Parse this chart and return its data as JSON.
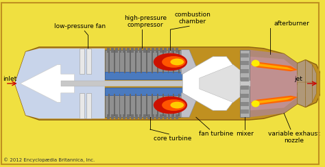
{
  "bg": "#f0e040",
  "border_ec": "#c09020",
  "body_fill": "#c09020",
  "body_ec": "#8B6010",
  "fan_fill": "#c8d4ea",
  "gray_fill": "#909090",
  "gray_ec": "#555555",
  "blue_fill": "#4a7abf",
  "blue_ec": "#2255aa",
  "shaft_fill": "#cccccc",
  "afterburner_fill": "#b08878",
  "mixer_fill": "#aaaaaa",
  "white_cone": "#ffffff",
  "fan_blade_fill": "#e0e0e0",
  "fan_blade_ec": "#999999",
  "nozzle_fin_fill": "#b09878",
  "nozzle_fin_ec": "#8B6010",
  "copyright": "© 2012 Encyclopædia Britannica, Inc.",
  "labels": {
    "low_pressure_fan": "low-pressure fan",
    "high_pressure_compressor": "high-pressure\ncompressor",
    "combustion_chamber": "combustion\nchamber",
    "afterburner": "afterburner",
    "core_turbine": "core turbine",
    "fan_turbine": "fan turbine",
    "mixer": "mixer",
    "variable_exhaust_nozzle": "variable exhaust\nnozzle",
    "inlet": "inlet",
    "jet": "jet"
  },
  "fs": 6.5
}
